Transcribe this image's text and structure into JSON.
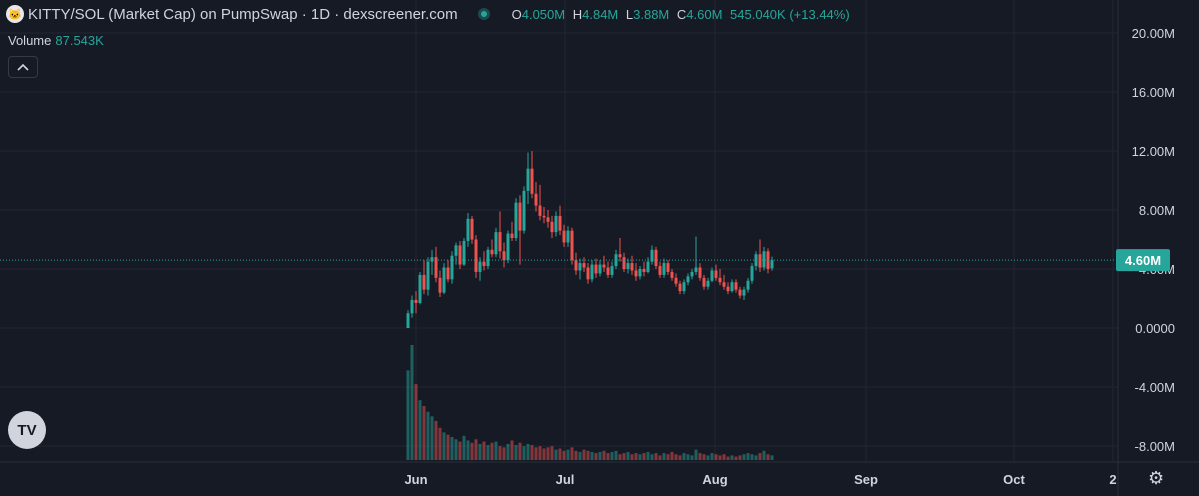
{
  "header": {
    "title": "KITTY/SOL (Market Cap) on PumpSwap · 1D · dexscreener.com",
    "ohlc": {
      "o_label": "O",
      "o_value": "4.050M",
      "h_label": "H",
      "h_value": "4.84M",
      "l_label": "L",
      "l_value": "3.88M",
      "c_label": "C",
      "c_value": "4.60M",
      "change": "545.040K (+13.44%)"
    }
  },
  "volume": {
    "label": "Volume",
    "value": "87.543K"
  },
  "controls": {
    "collapse_icon": "chevron-up-icon",
    "brand_icon": "tradingview-logo-icon",
    "brand_text": "TV",
    "settings_icon": "gear-icon"
  },
  "colors": {
    "up": "#26a69a",
    "down": "#ef5350",
    "background": "#161a25",
    "grid": "#232632",
    "text": "#d1d4dc"
  },
  "chart_data": {
    "type": "candlestick",
    "y_ticks": [
      "20.00M",
      "16.00M",
      "12.00M",
      "8.00M",
      "4.00M",
      "0.0000",
      "-4.00M",
      "-8.00M"
    ],
    "y_tick_values": [
      20,
      16,
      12,
      8,
      4,
      0,
      -4,
      -8
    ],
    "ylim": [
      -9,
      21
    ],
    "x_ticks": [
      "Jun",
      "Jul",
      "Aug",
      "Sep",
      "Oct",
      "2"
    ],
    "last_price_label": "4.60M",
    "last_price": 4.6,
    "grid": true,
    "candles": [
      [
        0.0,
        1.2,
        0.0,
        1.0
      ],
      [
        1.0,
        2.2,
        0.7,
        1.9
      ],
      [
        1.9,
        2.5,
        1.0,
        1.7
      ],
      [
        1.7,
        3.8,
        1.6,
        3.6
      ],
      [
        3.6,
        4.6,
        2.3,
        2.6
      ],
      [
        2.6,
        4.8,
        2.2,
        4.5
      ],
      [
        4.5,
        5.3,
        3.6,
        4.8
      ],
      [
        4.8,
        5.5,
        3.1,
        3.4
      ],
      [
        3.4,
        3.9,
        2.1,
        2.4
      ],
      [
        2.4,
        4.4,
        2.3,
        4.1
      ],
      [
        4.1,
        4.6,
        3.1,
        3.3
      ],
      [
        3.3,
        5.2,
        3.0,
        4.9
      ],
      [
        4.9,
        5.8,
        4.3,
        5.6
      ],
      [
        5.6,
        5.9,
        4.0,
        4.3
      ],
      [
        4.3,
        6.1,
        4.2,
        5.9
      ],
      [
        5.9,
        7.8,
        5.5,
        7.4
      ],
      [
        7.4,
        7.6,
        5.7,
        6.0
      ],
      [
        6.0,
        6.3,
        3.4,
        3.8
      ],
      [
        3.8,
        4.8,
        3.2,
        4.5
      ],
      [
        4.5,
        5.2,
        3.9,
        4.2
      ],
      [
        4.2,
        5.5,
        4.0,
        5.3
      ],
      [
        5.3,
        6.0,
        4.8,
        5.0
      ],
      [
        5.0,
        6.8,
        4.8,
        6.5
      ],
      [
        6.5,
        7.9,
        4.7,
        5.2
      ],
      [
        5.2,
        5.8,
        4.1,
        4.6
      ],
      [
        4.6,
        6.6,
        4.4,
        6.4
      ],
      [
        6.4,
        7.2,
        5.9,
        6.1
      ],
      [
        6.1,
        8.8,
        5.9,
        8.5
      ],
      [
        8.5,
        9.0,
        4.3,
        6.6
      ],
      [
        6.6,
        9.6,
        6.4,
        9.3
      ],
      [
        9.3,
        11.9,
        8.4,
        10.8
      ],
      [
        10.8,
        12.0,
        8.8,
        9.1
      ],
      [
        9.1,
        9.9,
        7.9,
        8.3
      ],
      [
        8.3,
        9.7,
        7.3,
        7.6
      ],
      [
        7.6,
        8.2,
        7.1,
        7.5
      ],
      [
        7.5,
        8.0,
        6.8,
        7.2
      ],
      [
        7.2,
        7.6,
        6.1,
        6.5
      ],
      [
        6.5,
        7.9,
        6.2,
        7.6
      ],
      [
        7.6,
        8.3,
        6.3,
        6.6
      ],
      [
        6.6,
        7.0,
        5.5,
        5.8
      ],
      [
        5.8,
        6.9,
        5.5,
        6.6
      ],
      [
        6.6,
        6.8,
        4.3,
        4.6
      ],
      [
        4.6,
        5.1,
        3.6,
        3.9
      ],
      [
        3.9,
        4.7,
        3.3,
        4.4
      ],
      [
        4.4,
        4.8,
        3.8,
        4.1
      ],
      [
        4.1,
        4.4,
        3.0,
        3.3
      ],
      [
        3.3,
        4.6,
        3.1,
        4.3
      ],
      [
        4.3,
        4.7,
        3.4,
        3.7
      ],
      [
        3.7,
        4.6,
        3.5,
        4.3
      ],
      [
        4.3,
        4.9,
        3.8,
        4.1
      ],
      [
        4.1,
        4.5,
        3.4,
        3.6
      ],
      [
        3.6,
        4.5,
        3.4,
        4.2
      ],
      [
        4.2,
        5.3,
        4.0,
        5.0
      ],
      [
        5.0,
        6.1,
        4.5,
        4.8
      ],
      [
        4.8,
        5.1,
        3.8,
        4.0
      ],
      [
        4.0,
        4.7,
        3.7,
        4.4
      ],
      [
        4.4,
        4.9,
        3.6,
        3.9
      ],
      [
        3.9,
        4.4,
        3.2,
        3.5
      ],
      [
        3.5,
        4.2,
        3.3,
        4.0
      ],
      [
        4.0,
        4.5,
        3.5,
        3.8
      ],
      [
        3.8,
        4.8,
        3.7,
        4.5
      ],
      [
        4.5,
        5.6,
        4.3,
        5.3
      ],
      [
        5.3,
        5.5,
        4.0,
        4.2
      ],
      [
        4.2,
        4.5,
        3.4,
        3.6
      ],
      [
        3.6,
        4.7,
        3.4,
        4.4
      ],
      [
        4.4,
        4.6,
        3.6,
        3.8
      ],
      [
        3.8,
        4.0,
        3.2,
        3.4
      ],
      [
        3.4,
        3.7,
        2.8,
        3.0
      ],
      [
        3.0,
        3.2,
        2.3,
        2.5
      ],
      [
        2.5,
        3.3,
        2.3,
        3.1
      ],
      [
        3.1,
        3.7,
        2.9,
        3.5
      ],
      [
        3.5,
        4.0,
        3.3,
        3.8
      ],
      [
        3.8,
        6.2,
        3.6,
        4.1
      ],
      [
        4.1,
        4.4,
        3.2,
        3.4
      ],
      [
        3.4,
        3.6,
        2.6,
        2.8
      ],
      [
        2.8,
        3.4,
        2.6,
        3.2
      ],
      [
        3.2,
        4.1,
        3.1,
        3.9
      ],
      [
        3.9,
        4.3,
        3.2,
        3.4
      ],
      [
        3.4,
        4.0,
        2.9,
        3.1
      ],
      [
        3.1,
        3.6,
        2.6,
        2.8
      ],
      [
        2.8,
        3.1,
        2.3,
        2.5
      ],
      [
        2.5,
        3.3,
        2.4,
        3.1
      ],
      [
        3.1,
        3.3,
        2.4,
        2.6
      ],
      [
        2.6,
        2.8,
        2.0,
        2.2
      ],
      [
        2.2,
        2.8,
        1.9,
        2.6
      ],
      [
        2.6,
        3.4,
        2.4,
        3.2
      ],
      [
        3.2,
        4.4,
        3.0,
        4.2
      ],
      [
        4.2,
        5.2,
        3.9,
        5.0
      ],
      [
        5.0,
        6.0,
        3.8,
        4.1
      ],
      [
        4.1,
        5.5,
        3.9,
        5.2
      ],
      [
        5.2,
        5.4,
        3.7,
        4.0
      ],
      [
        4.05,
        4.84,
        3.88,
        4.6
      ]
    ],
    "volume": [
      78,
      100,
      66,
      52,
      47,
      42,
      38,
      34,
      28,
      24,
      22,
      20,
      18,
      16,
      21,
      17,
      15,
      18,
      14,
      16,
      13,
      15,
      16,
      12,
      11,
      14,
      17,
      13,
      15,
      12,
      14,
      13,
      11,
      12,
      10,
      11,
      12,
      9,
      10,
      8,
      9,
      11,
      8,
      7,
      9,
      8,
      7,
      6,
      7,
      8,
      6,
      7,
      8,
      5,
      6,
      7,
      5,
      6,
      5,
      6,
      7,
      5,
      6,
      4,
      6,
      5,
      7,
      5,
      4,
      6,
      5,
      4,
      9,
      6,
      5,
      4,
      6,
      5,
      4,
      5,
      3,
      4,
      3,
      4,
      5,
      6,
      5,
      4,
      6,
      8,
      5,
      4
    ]
  }
}
